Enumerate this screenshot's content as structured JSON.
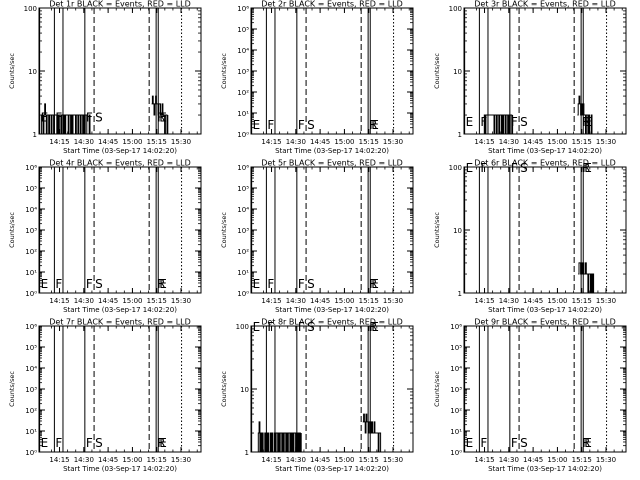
{
  "colors": {
    "events": "#000000",
    "lld": "#ff0000",
    "background": "#ffffff"
  },
  "xlabel": "Start Time (03-Sep-17 14:02:20)",
  "ylabel": "Counts/sec",
  "x_tick_labels": [
    "14:15",
    "14:30",
    "14:45",
    "15:00",
    "15:15",
    "15:30"
  ],
  "x_ticks_minutes": [
    12.67,
    27.67,
    42.67,
    57.67,
    72.67,
    87.67
  ],
  "xlim_minutes": [
    0,
    100
  ],
  "markers": [
    {
      "label": "E",
      "t": 0.4,
      "style": "solid"
    },
    {
      "label": "F",
      "t": 9.5,
      "style": "solid"
    },
    {
      "label": "",
      "t": 14.8,
      "style": "solid"
    },
    {
      "label": "F",
      "t": 28.3,
      "style": "solid"
    },
    {
      "label": "S",
      "t": 34.0,
      "style": "dashed"
    },
    {
      "label": "",
      "t": 68.0,
      "style": "dashed"
    },
    {
      "label": "R",
      "t": 72.3,
      "style": "solid"
    },
    {
      "label": "E",
      "t": 73.6,
      "style": "solid"
    },
    {
      "label": "",
      "t": 88.0,
      "style": "dotted"
    }
  ],
  "chart_data": [
    {
      "type": "line",
      "title": "Det 1r BLACK = Events, RED = LLD",
      "yscale": "log",
      "ylim": [
        1,
        100
      ],
      "y_tick_labels": [
        "1",
        "10",
        "100"
      ],
      "y_ticks": [
        1,
        10,
        100
      ],
      "marker_label_y": 1.9,
      "series": [
        {
          "name": "Events",
          "x": [
            1.0,
            1.5,
            2.0,
            2.5,
            3.0,
            3.5,
            4.0,
            4.5,
            5.0,
            5.5,
            6.0,
            6.5,
            7.0,
            7.5,
            8.0,
            8.5,
            9.0,
            9.5,
            10.0,
            10.5,
            11.0,
            11.5,
            12.0,
            12.5,
            13.0,
            13.5,
            14.0,
            14.5,
            15.0,
            15.5,
            16.0,
            16.5,
            17.0,
            17.5,
            18.0,
            18.5,
            19.0,
            19.5,
            20.0,
            20.5,
            21.0,
            21.5,
            22.0,
            22.5,
            23.0,
            23.5,
            24.0,
            24.5,
            25.0,
            25.5,
            26.0,
            26.5,
            27.0,
            27.5,
            28.0,
            28.5,
            29.0,
            29.5,
            30.0,
            30.5,
            31.0,
            31.5
          ],
          "y": [
            1.0,
            2.0,
            2.0,
            1.0,
            2.0,
            3.0,
            2.0,
            1.0,
            2.0,
            2.0,
            1.0,
            2.0,
            2.0,
            1.0,
            2.0,
            2.0,
            1.0,
            2.0,
            2.0,
            2.0,
            1.0,
            2.0,
            1.0,
            2.0,
            2.0,
            1.0,
            2.0,
            2.0,
            1.0,
            2.0,
            1.0,
            2.0,
            2.0,
            2.0,
            1.0,
            2.0,
            2.0,
            1.0,
            2.0,
            1.0,
            2.0,
            2.0,
            2.0,
            1.0,
            2.0,
            2.0,
            1.0,
            2.0,
            2.0,
            1.0,
            2.0,
            2.0,
            1.0,
            2.0,
            1.0,
            2.0,
            2.0,
            1.0,
            1.0,
            1.0,
            2.0,
            1.0
          ]
        },
        {
          "name": "Events",
          "x": [
            69.5,
            70.0,
            70.5,
            71.0,
            71.5,
            72.0,
            72.5,
            73.0,
            73.5,
            74.0,
            74.5,
            75.0,
            75.5,
            76.0,
            76.5,
            77.0,
            77.5,
            78.0,
            78.5,
            79.0,
            79.5
          ],
          "y": [
            3.0,
            4.0,
            3.0,
            2.0,
            3.0,
            4.0,
            3.0,
            3.0,
            2.0,
            3.0,
            3.0,
            2.0,
            2.0,
            3.0,
            2.0,
            2.0,
            1.0,
            2.0,
            2.0,
            1.0,
            2.0
          ]
        }
      ]
    },
    {
      "type": "line",
      "title": "Det 2r BLACK = Events, RED = LLD",
      "yscale": "log",
      "ylim": [
        1,
        1000000
      ],
      "y_tick_labels": [
        "10⁰",
        "10¹",
        "10²",
        "10³",
        "10⁴",
        "10⁵",
        "10⁶"
      ],
      "y_ticks": [
        1,
        10,
        100,
        1000,
        10000,
        100000,
        1000000
      ],
      "marker_label_y": 3,
      "series": []
    },
    {
      "type": "line",
      "title": "Det 3r BLACK = Events, RED = LLD",
      "yscale": "log",
      "ylim": [
        1,
        100
      ],
      "y_tick_labels": [
        "1",
        "10",
        "100"
      ],
      "y_ticks": [
        1,
        10,
        100
      ],
      "marker_label_y": 1.6,
      "series": [
        {
          "name": "Events",
          "x": [
            12.0,
            12.5,
            13.0,
            13.5,
            18.0,
            18.5,
            19.0,
            19.5,
            20.0,
            20.5,
            21.0,
            21.5,
            22.0,
            22.5,
            23.0,
            23.5,
            24.0,
            24.5,
            25.0,
            25.5,
            26.0,
            26.5,
            27.0,
            27.5,
            28.0,
            28.5,
            29.0,
            29.5,
            30.0
          ],
          "y": [
            1.0,
            2.0,
            1.0,
            2.0,
            2.0,
            1.0,
            2.0,
            2.0,
            1.0,
            2.0,
            2.0,
            1.0,
            2.0,
            2.0,
            1.0,
            2.0,
            1.0,
            2.0,
            2.0,
            1.0,
            2.0,
            2.0,
            1.0,
            2.0,
            1.0,
            2.0,
            2.0,
            1.0,
            2.0
          ]
        },
        {
          "name": "Events",
          "x": [
            70.0,
            70.5,
            71.0,
            71.5,
            72.0,
            72.5,
            73.0,
            73.5,
            74.0,
            74.5,
            75.0,
            75.5,
            76.0,
            76.5,
            77.0,
            77.5,
            78.0,
            78.5,
            79.0
          ],
          "y": [
            2.0,
            3.0,
            4.0,
            3.0,
            2.0,
            3.0,
            2.0,
            3.0,
            2.0,
            2.0,
            1.0,
            2.0,
            2.0,
            1.0,
            2.0,
            1.0,
            1.0,
            2.0,
            1.0
          ]
        }
      ]
    },
    {
      "type": "line",
      "title": "Det 4r BLACK = Events, RED = LLD",
      "yscale": "log",
      "ylim": [
        1,
        1000000
      ],
      "y_tick_labels": [
        "10⁰",
        "10¹",
        "10²",
        "10³",
        "10⁴",
        "10⁵",
        "10⁶"
      ],
      "y_ticks": [
        1,
        10,
        100,
        1000,
        10000,
        100000,
        1000000
      ],
      "marker_label_y": 3,
      "series": []
    },
    {
      "type": "line",
      "title": "Det 5r BLACK = Events, RED = LLD",
      "yscale": "log",
      "ylim": [
        1,
        1000000
      ],
      "y_tick_labels": [
        "10⁰",
        "10¹",
        "10²",
        "10³",
        "10⁴",
        "10⁵",
        "10⁶"
      ],
      "y_ticks": [
        1,
        10,
        100,
        1000,
        10000,
        100000,
        1000000
      ],
      "marker_label_y": 3,
      "series": []
    },
    {
      "type": "line",
      "title": "Det 6r BLACK = Events, RED = LLD",
      "yscale": "log",
      "ylim": [
        1,
        100
      ],
      "y_tick_labels": [
        "1",
        "10",
        "100"
      ],
      "y_ticks": [
        1,
        10,
        100
      ],
      "marker_label_y": 100,
      "series": [
        {
          "name": "Events",
          "x": [
            70.5,
            71.0,
            71.5,
            72.0,
            72.5,
            73.0,
            73.5,
            74.0,
            74.5,
            75.0,
            75.5,
            76.0,
            76.5,
            77.0,
            77.5,
            78.0,
            78.5,
            79.0,
            79.5,
            80.0
          ],
          "y": [
            2.0,
            3.0,
            3.0,
            2.0,
            3.0,
            2.0,
            3.0,
            2.0,
            2.0,
            3.0,
            2.0,
            2.0,
            1.0,
            2.0,
            2.0,
            1.0,
            2.0,
            1.0,
            2.0,
            1.0
          ]
        }
      ]
    },
    {
      "type": "line",
      "title": "Det 7r BLACK = Events, RED = LLD",
      "yscale": "log",
      "ylim": [
        1,
        1000000
      ],
      "y_tick_labels": [
        "10⁰",
        "10¹",
        "10²",
        "10³",
        "10⁴",
        "10⁵",
        "10⁶"
      ],
      "y_ticks": [
        1,
        10,
        100,
        1000,
        10000,
        100000,
        1000000
      ],
      "marker_label_y": 3,
      "series": []
    },
    {
      "type": "line",
      "title": "Det 8r BLACK = Events, RED = LLD",
      "yscale": "log",
      "ylim": [
        1,
        100
      ],
      "y_tick_labels": [
        "1",
        "10",
        "100"
      ],
      "y_ticks": [
        1,
        10,
        100
      ],
      "marker_label_y": 100,
      "series": [
        {
          "name": "Events",
          "x": [
            4.0,
            4.5,
            5.0,
            5.5,
            6.0,
            6.5,
            7.0,
            7.5,
            8.0,
            8.5,
            9.0,
            9.5,
            10.0,
            10.5,
            11.0,
            11.5,
            12.0,
            12.5,
            13.0,
            13.5,
            14.0,
            14.5,
            15.0,
            15.5,
            16.0,
            16.5,
            17.0,
            17.5,
            18.0,
            18.5,
            19.0,
            19.5,
            20.0,
            20.5,
            21.0,
            21.5,
            22.0,
            22.5,
            23.0,
            23.5,
            24.0,
            24.5,
            25.0,
            25.5,
            26.0,
            26.5,
            27.0,
            27.5,
            28.0,
            28.5,
            29.0,
            29.5,
            30.0,
            30.5,
            31.0
          ],
          "y": [
            1.0,
            2.0,
            3.0,
            1.0,
            2.0,
            1.0,
            2.0,
            1.0,
            1.0,
            2.0,
            1.0,
            2.0,
            1.0,
            2.0,
            1.0,
            1.0,
            2.0,
            1.0,
            2.0,
            1.0,
            1.0,
            2.0,
            1.0,
            2.0,
            2.0,
            1.0,
            2.0,
            1.0,
            2.0,
            2.0,
            1.0,
            2.0,
            1.0,
            2.0,
            2.0,
            1.0,
            2.0,
            1.0,
            2.0,
            2.0,
            1.0,
            2.0,
            1.0,
            2.0,
            1.0,
            2.0,
            2.0,
            1.0,
            2.0,
            1.0,
            2.0,
            1.0,
            2.0,
            1.0,
            2.0
          ]
        },
        {
          "name": "Events",
          "x": [
            69.0,
            69.5,
            70.0,
            70.5,
            71.0,
            71.5,
            72.0,
            72.5,
            73.0,
            73.5,
            74.0,
            74.5,
            75.0,
            75.5,
            76.0,
            76.5,
            77.0,
            77.5,
            78.0,
            78.5,
            79.0,
            79.5,
            80.0
          ],
          "y": [
            3.0,
            4.0,
            3.0,
            2.0,
            4.0,
            3.0,
            3.0,
            2.0,
            3.0,
            3.0,
            2.0,
            3.0,
            2.0,
            2.0,
            3.0,
            2.0,
            2.0,
            2.0,
            2.0,
            1.0,
            2.0,
            2.0,
            1.0
          ]
        }
      ]
    },
    {
      "type": "line",
      "title": "Det 9r BLACK = Events, RED = LLD",
      "yscale": "log",
      "ylim": [
        1,
        1000000
      ],
      "y_tick_labels": [
        "10⁰",
        "10¹",
        "10²",
        "10³",
        "10⁴",
        "10⁵",
        "10⁶"
      ],
      "y_ticks": [
        1,
        10,
        100,
        1000,
        10000,
        100000,
        1000000
      ],
      "marker_label_y": 3,
      "series": []
    }
  ]
}
